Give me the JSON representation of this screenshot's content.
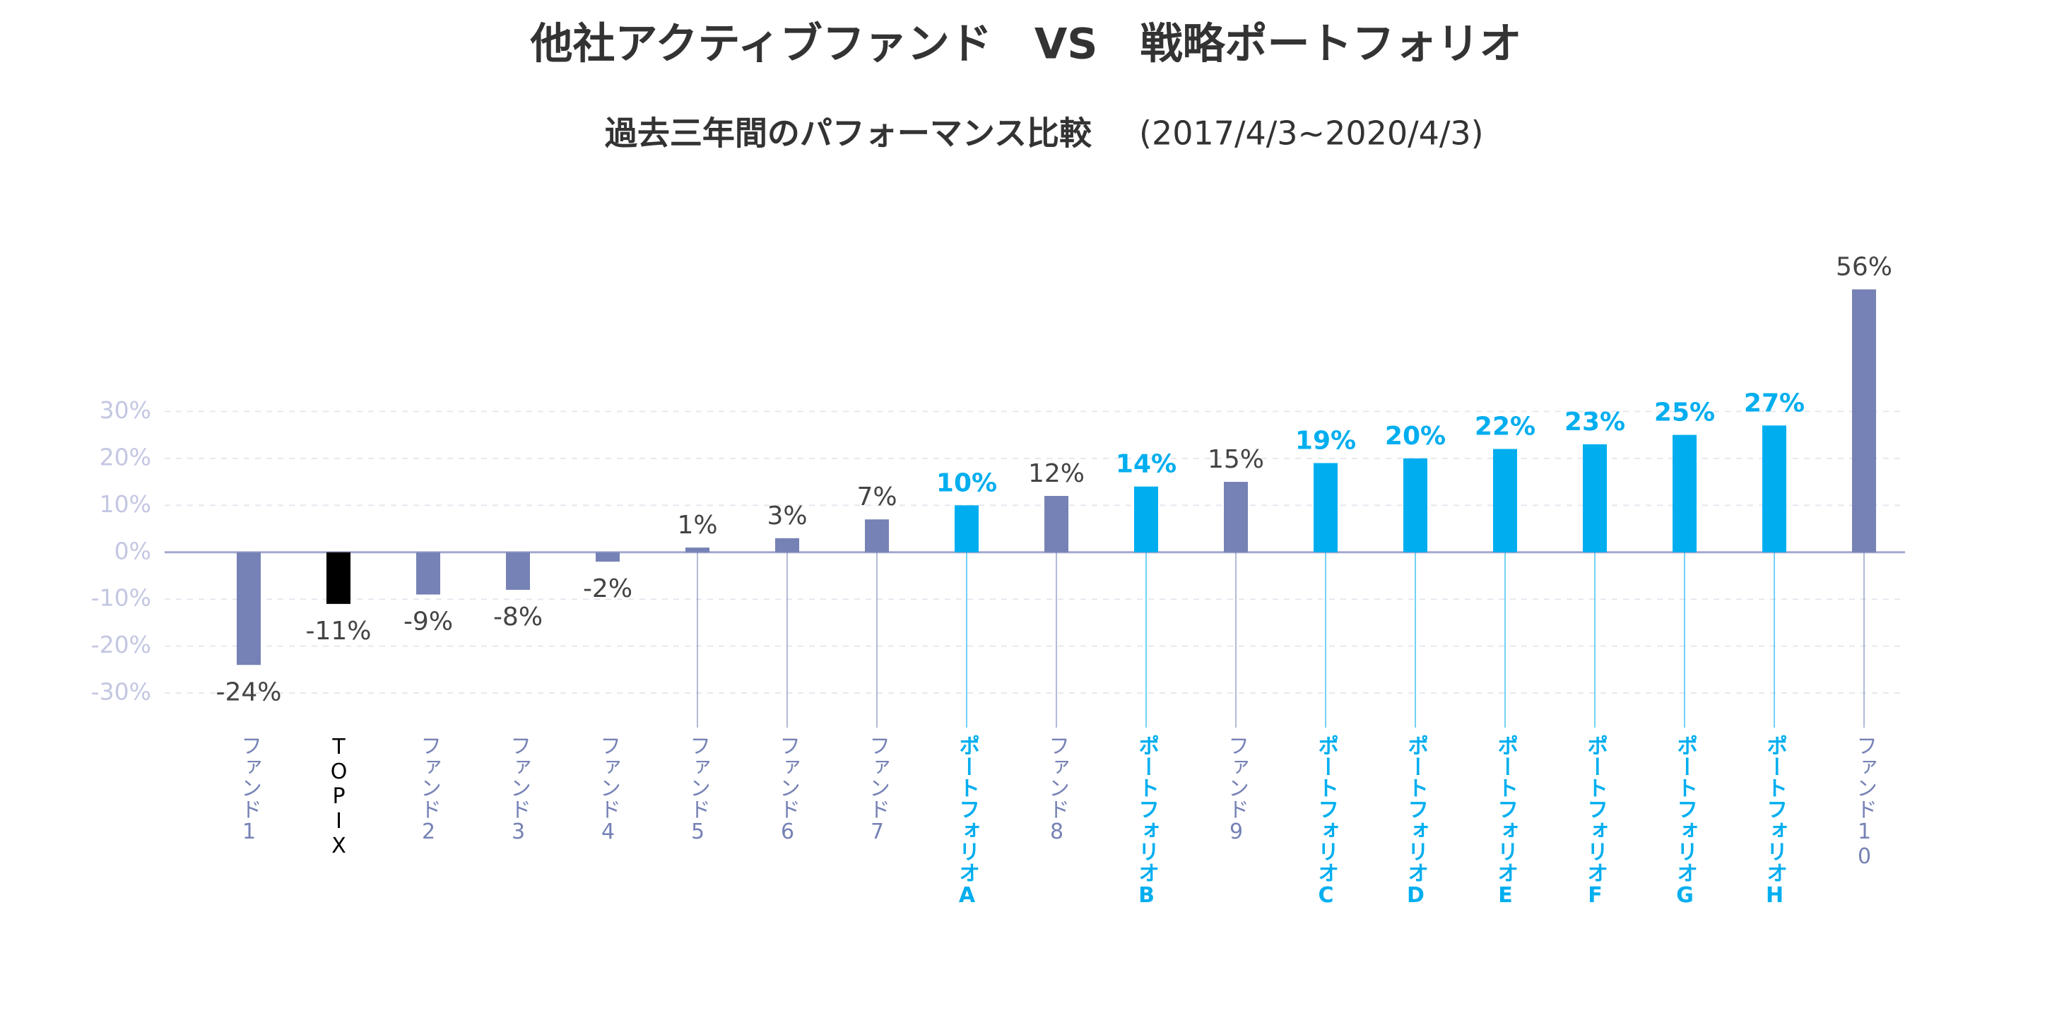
{
  "chart_data": {
    "type": "bar",
    "title": "他社アクティブファンド　VS　戦略ポートフォリオ",
    "subtitle": "過去三年間のパフォーマンス比較",
    "period": "(2017/4/3~2020/4/3)",
    "categories": [
      "ファンド1",
      "TOPIX",
      "ファンド2",
      "ファンド3",
      "ファンド4",
      "ファンド5",
      "ファンド6",
      "ファンド7",
      "ポートフォリオA",
      "ファンド8",
      "ポートフォリオB",
      "ファンド9",
      "ポートフォリオC",
      "ポートフォリオD",
      "ポートフォリオE",
      "ポートフォリオF",
      "ポートフォリオG",
      "ポートフォリオH",
      "ファンド10"
    ],
    "values": [
      -24,
      -11,
      -9,
      -8,
      -2,
      1,
      3,
      7,
      10,
      12,
      14,
      15,
      19,
      20,
      22,
      23,
      25,
      27,
      56
    ],
    "value_labels": [
      "-24%",
      "-11%",
      "-9%",
      "-8%",
      "-2%",
      "1%",
      "3%",
      "7%",
      "10%",
      "12%",
      "14%",
      "15%",
      "19%",
      "20%",
      "22%",
      "23%",
      "25%",
      "27%",
      "56%"
    ],
    "colors": [
      "#7682b5",
      "#000000",
      "#7682b5",
      "#7682b5",
      "#7682b5",
      "#7682b5",
      "#7682b5",
      "#7682b5",
      "#00aeef",
      "#7682b5",
      "#00aeef",
      "#7682b5",
      "#00aeef",
      "#00aeef",
      "#00aeef",
      "#00aeef",
      "#00aeef",
      "#00aeef",
      "#7682b5"
    ],
    "highlight_color": "#00aeef",
    "ylim": [
      -36,
      60
    ],
    "yticks": [
      {
        "value": -30,
        "label": "-30%"
      },
      {
        "value": -20,
        "label": "-20%"
      },
      {
        "value": -10,
        "label": "-10%"
      },
      {
        "value": 0,
        "label": "0%"
      },
      {
        "value": 10,
        "label": "10%"
      },
      {
        "value": 20,
        "label": "20%"
      },
      {
        "value": 30,
        "label": "30%"
      }
    ],
    "grid": true
  }
}
